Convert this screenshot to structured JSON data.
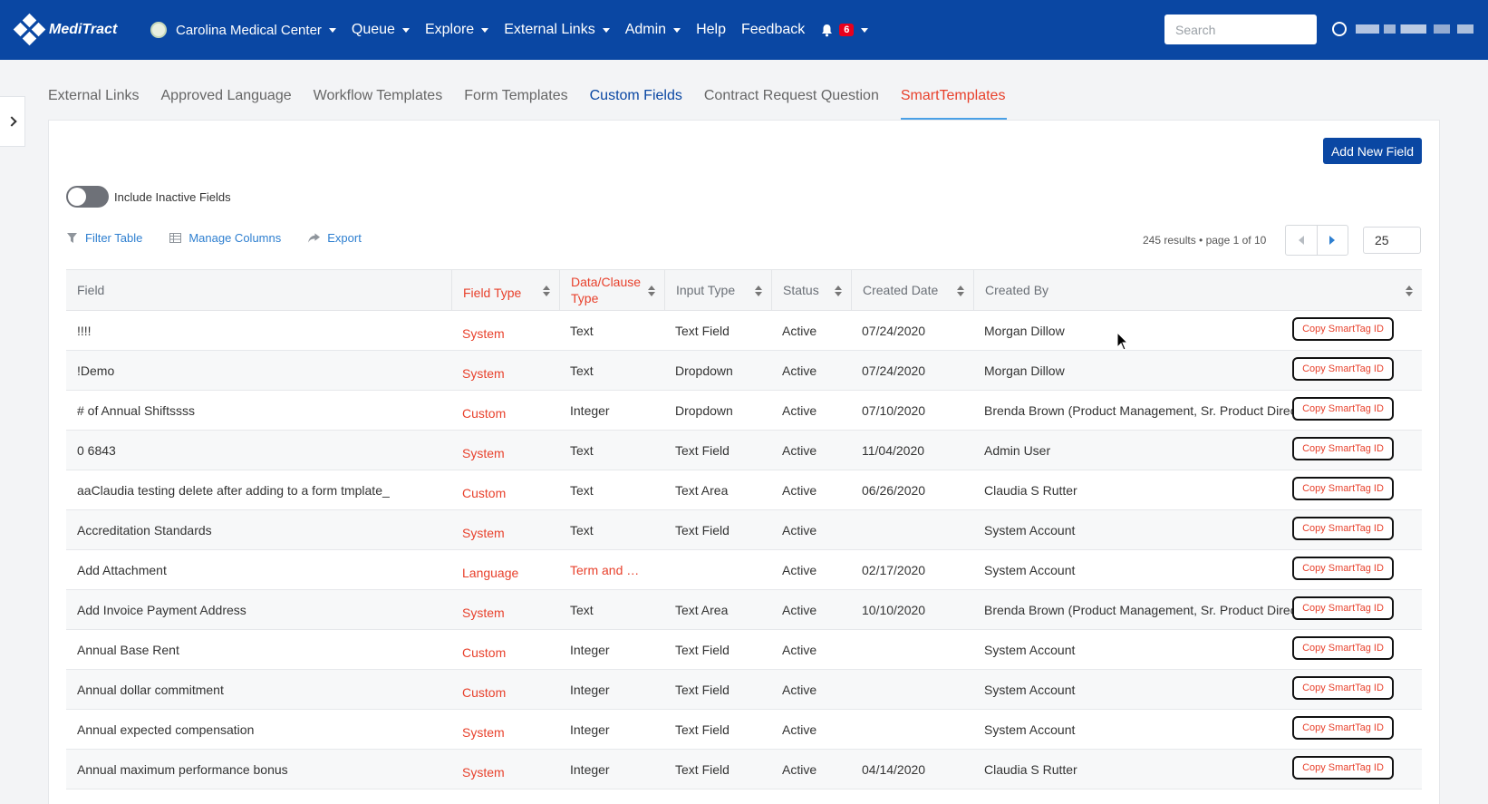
{
  "app": {
    "logo_text": "MediTract",
    "org_name": "Carolina Medical Center",
    "nav": [
      "Queue",
      "Explore",
      "External Links",
      "Admin",
      "Help",
      "Feedback"
    ],
    "notification_count": "6",
    "search_placeholder": "Search"
  },
  "tabs": [
    "External Links",
    "Approved Language",
    "Workflow Templates",
    "Form Templates",
    "Custom Fields",
    "Contract Request Question",
    "SmartTemplates"
  ],
  "toolbar": {
    "add_button": "Add New Field",
    "toggle_label": "Include Inactive Fields",
    "filter": "Filter Table",
    "manage_columns": "Manage Columns",
    "export": "Export",
    "results": "245 results • page 1 of 10",
    "page_size": "25"
  },
  "columns": [
    "Field",
    "Field Type",
    "Data/Clause Type",
    "Input Type",
    "Status",
    "Created Date",
    "Created By"
  ],
  "copy_label": "Copy SmartTag ID",
  "rows": [
    {
      "field": "!!!!",
      "field_type": "System",
      "data_type": "Text",
      "input_type": "Text Field",
      "status": "Active",
      "created_date": "07/24/2020",
      "created_by": "Morgan Dillow"
    },
    {
      "field": "!Demo",
      "field_type": "System",
      "data_type": "Text",
      "input_type": "Dropdown",
      "status": "Active",
      "created_date": "07/24/2020",
      "created_by": "Morgan Dillow"
    },
    {
      "field": "# of Annual Shiftssss",
      "field_type": "Custom",
      "data_type": "Integer",
      "input_type": "Dropdown",
      "status": "Active",
      "created_date": "07/10/2020",
      "created_by": "Brenda Brown (Product Management, Sr. Product Director)"
    },
    {
      "field": "0 6843",
      "field_type": "System",
      "data_type": "Text",
      "input_type": "Text Field",
      "status": "Active",
      "created_date": "11/04/2020",
      "created_by": "Admin User"
    },
    {
      "field": "aaClaudia testing delete after adding to a form tmplate_",
      "field_type": "Custom",
      "data_type": "Text",
      "input_type": "Text Area",
      "status": "Active",
      "created_date": "06/26/2020",
      "created_by": "Claudia S Rutter"
    },
    {
      "field": "Accreditation Standards",
      "field_type": "System",
      "data_type": "Text",
      "input_type": "Text Field",
      "status": "Active",
      "created_date": "",
      "created_by": "System Account"
    },
    {
      "field": "Add Attachment",
      "field_type": "Language",
      "data_type": "Term and …",
      "input_type": "",
      "status": "Active",
      "created_date": "02/17/2020",
      "created_by": "System Account"
    },
    {
      "field": "Add Invoice Payment Address",
      "field_type": "System",
      "data_type": "Text",
      "input_type": "Text Area",
      "status": "Active",
      "created_date": "10/10/2020",
      "created_by": "Brenda Brown (Product Management, Sr. Product Director)"
    },
    {
      "field": "Annual Base Rent",
      "field_type": "Custom",
      "data_type": "Integer",
      "input_type": "Text Field",
      "status": "Active",
      "created_date": "",
      "created_by": "System Account"
    },
    {
      "field": "Annual dollar commitment",
      "field_type": "Custom",
      "data_type": "Integer",
      "input_type": "Text Field",
      "status": "Active",
      "created_date": "",
      "created_by": "System Account"
    },
    {
      "field": "Annual expected compensation",
      "field_type": "System",
      "data_type": "Integer",
      "input_type": "Text Field",
      "status": "Active",
      "created_date": "",
      "created_by": "System Account"
    },
    {
      "field": "Annual maximum performance bonus",
      "field_type": "System",
      "data_type": "Integer",
      "input_type": "Text Field",
      "status": "Active",
      "created_date": "04/14/2020",
      "created_by": "Claudia S Rutter"
    }
  ]
}
